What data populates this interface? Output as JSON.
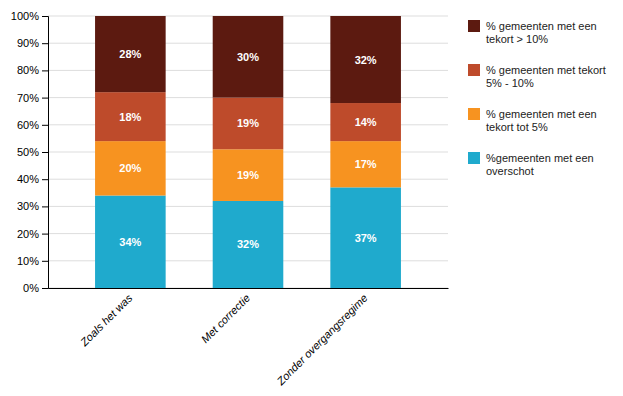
{
  "chart_data": {
    "type": "bar",
    "stacked": true,
    "categories": [
      "Zoals het was",
      "Met correctie",
      "Zonder overgangsregime"
    ],
    "series": [
      {
        "name": "%gemeenten met een\noverschot",
        "color": "#1FAACD",
        "values": [
          34,
          32,
          37
        ],
        "value_labels": [
          "34%",
          "32%",
          "37%"
        ]
      },
      {
        "name": "% gemeenten met een\ntekort tot 5%",
        "color": "#F79320",
        "values": [
          20,
          19,
          17
        ],
        "value_labels": [
          "20%",
          "19%",
          "17%"
        ]
      },
      {
        "name": "% gemeenten met tekort\n5% - 10%",
        "color": "#BE4B2B",
        "values": [
          18,
          19,
          14
        ],
        "value_labels": [
          "18%",
          "19%",
          "14%"
        ]
      },
      {
        "name": "% gemeenten met een\ntekort > 10%",
        "color": "#5C1A10",
        "values": [
          28,
          30,
          32
        ],
        "value_labels": [
          "28%",
          "30%",
          "32%"
        ]
      }
    ],
    "ylim": [
      0,
      100
    ],
    "yticks": [
      {
        "value": 0,
        "label": "0%"
      },
      {
        "value": 10,
        "label": "10%"
      },
      {
        "value": 20,
        "label": "20%"
      },
      {
        "value": 30,
        "label": "30%"
      },
      {
        "value": 40,
        "label": "40%"
      },
      {
        "value": 50,
        "label": "50%"
      },
      {
        "value": 60,
        "label": "60%"
      },
      {
        "value": 70,
        "label": "70%"
      },
      {
        "value": 80,
        "label": "80%"
      },
      {
        "value": 90,
        "label": "90%"
      },
      {
        "value": 100,
        "label": "100%"
      }
    ],
    "grid": true,
    "legend": "right",
    "data_labels": true
  }
}
